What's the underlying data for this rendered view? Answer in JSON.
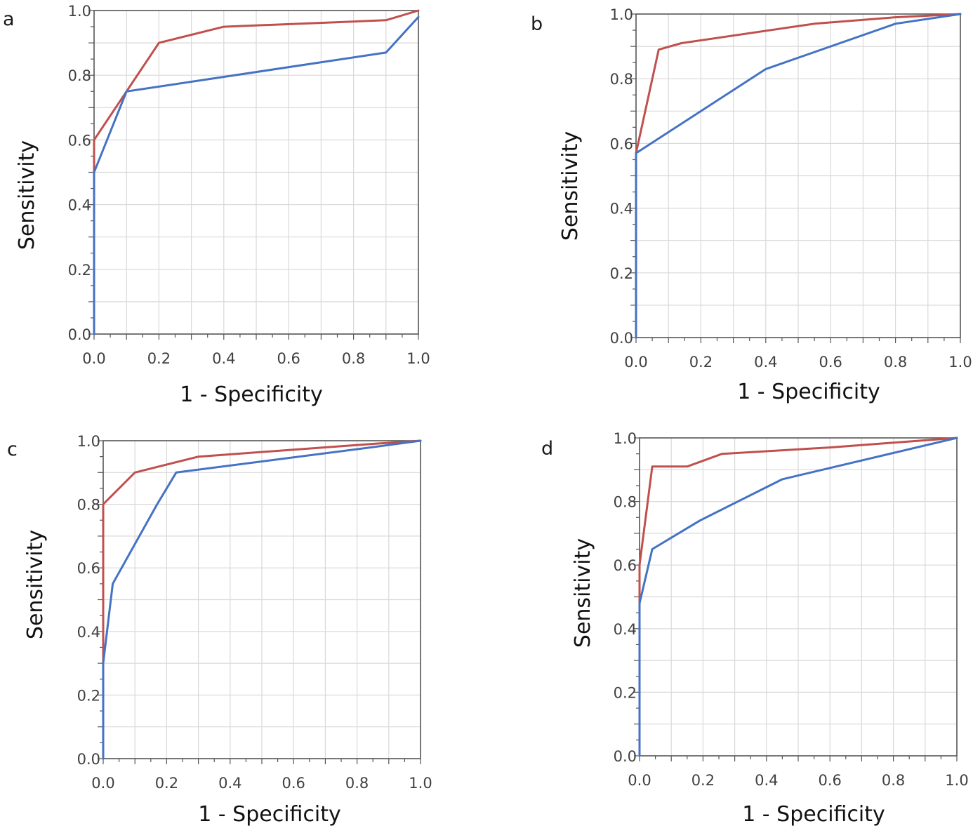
{
  "chart_data": [
    {
      "type": "line",
      "panel_label": "a",
      "xlabel": "1 - Specificity",
      "ylabel": "Sensitivity",
      "xlim": [
        0,
        1
      ],
      "ylim": [
        0,
        1
      ],
      "x_ticks": [
        "0.0",
        "0.2",
        "0.4",
        "0.6",
        "0.8",
        "1.0"
      ],
      "y_ticks": [
        "0.0",
        "0.2",
        "0.4",
        "0.6",
        "0.8",
        "1.0"
      ],
      "grid": true,
      "series": [
        {
          "color": "#c0504d",
          "x": [
            0,
            0,
            0.1,
            0.2,
            0.4,
            0.9,
            1.0
          ],
          "y": [
            0,
            0.6,
            0.75,
            0.9,
            0.95,
            0.97,
            1.0
          ]
        },
        {
          "color": "#4472c4",
          "x": [
            0,
            0,
            0.1,
            0.9,
            1.0
          ],
          "y": [
            0,
            0.5,
            0.75,
            0.87,
            0.98
          ]
        }
      ]
    },
    {
      "type": "line",
      "panel_label": "b",
      "xlabel": "1 - Specificity",
      "ylabel": "Sensitivity",
      "xlim": [
        0,
        1
      ],
      "ylim": [
        0,
        1
      ],
      "x_ticks": [
        "0.0",
        "0.2",
        "0.4",
        "0.6",
        "0.8",
        "1.0"
      ],
      "y_ticks": [
        "0.0",
        "0.2",
        "0.4",
        "0.6",
        "0.8",
        "1.0"
      ],
      "grid": true,
      "series": [
        {
          "color": "#c0504d",
          "x": [
            0,
            0,
            0.07,
            0.14,
            0.55,
            0.8,
            1.0
          ],
          "y": [
            0,
            0.57,
            0.89,
            0.91,
            0.97,
            0.99,
            1.0
          ]
        },
        {
          "color": "#4472c4",
          "x": [
            0,
            0,
            0.4,
            0.8,
            1.0
          ],
          "y": [
            0,
            0.57,
            0.83,
            0.97,
            1.0
          ]
        }
      ]
    },
    {
      "type": "line",
      "panel_label": "c",
      "xlabel": "1 - Specificity",
      "ylabel": "Sensitivity",
      "xlim": [
        0,
        1
      ],
      "ylim": [
        0,
        1
      ],
      "x_ticks": [
        "0.0",
        "0.2",
        "0.4",
        "0.6",
        "0.8",
        "1.0"
      ],
      "y_ticks": [
        "0.0",
        "0.2",
        "0.4",
        "0.6",
        "0.8",
        "1.0"
      ],
      "grid": true,
      "series": [
        {
          "color": "#c0504d",
          "x": [
            0,
            0,
            0.1,
            0.3,
            0.85,
            1.0
          ],
          "y": [
            0,
            0.8,
            0.9,
            0.95,
            0.99,
            1.0
          ]
        },
        {
          "color": "#4472c4",
          "x": [
            0,
            0,
            0.03,
            0.17,
            0.23,
            0.85,
            1.0
          ],
          "y": [
            0,
            0.3,
            0.55,
            0.8,
            0.9,
            0.98,
            1.0
          ]
        }
      ]
    },
    {
      "type": "line",
      "panel_label": "d",
      "xlabel": "1 - Specificity",
      "ylabel": "Sensitivity",
      "xlim": [
        0,
        1
      ],
      "ylim": [
        0,
        1
      ],
      "x_ticks": [
        "0.0",
        "0.2",
        "0.4",
        "0.6",
        "0.8",
        "1.0"
      ],
      "y_ticks": [
        "0.0",
        "0.2",
        "0.4",
        "0.6",
        "0.8",
        "1.0"
      ],
      "grid": true,
      "series": [
        {
          "color": "#c0504d",
          "x": [
            0,
            0,
            0.04,
            0.15,
            0.26,
            0.6,
            1.0
          ],
          "y": [
            0,
            0.6,
            0.91,
            0.91,
            0.95,
            0.97,
            1.0
          ]
        },
        {
          "color": "#4472c4",
          "x": [
            0,
            0,
            0.04,
            0.19,
            0.45,
            1.0
          ],
          "y": [
            0,
            0.48,
            0.65,
            0.74,
            0.87,
            1.0
          ]
        }
      ]
    }
  ]
}
